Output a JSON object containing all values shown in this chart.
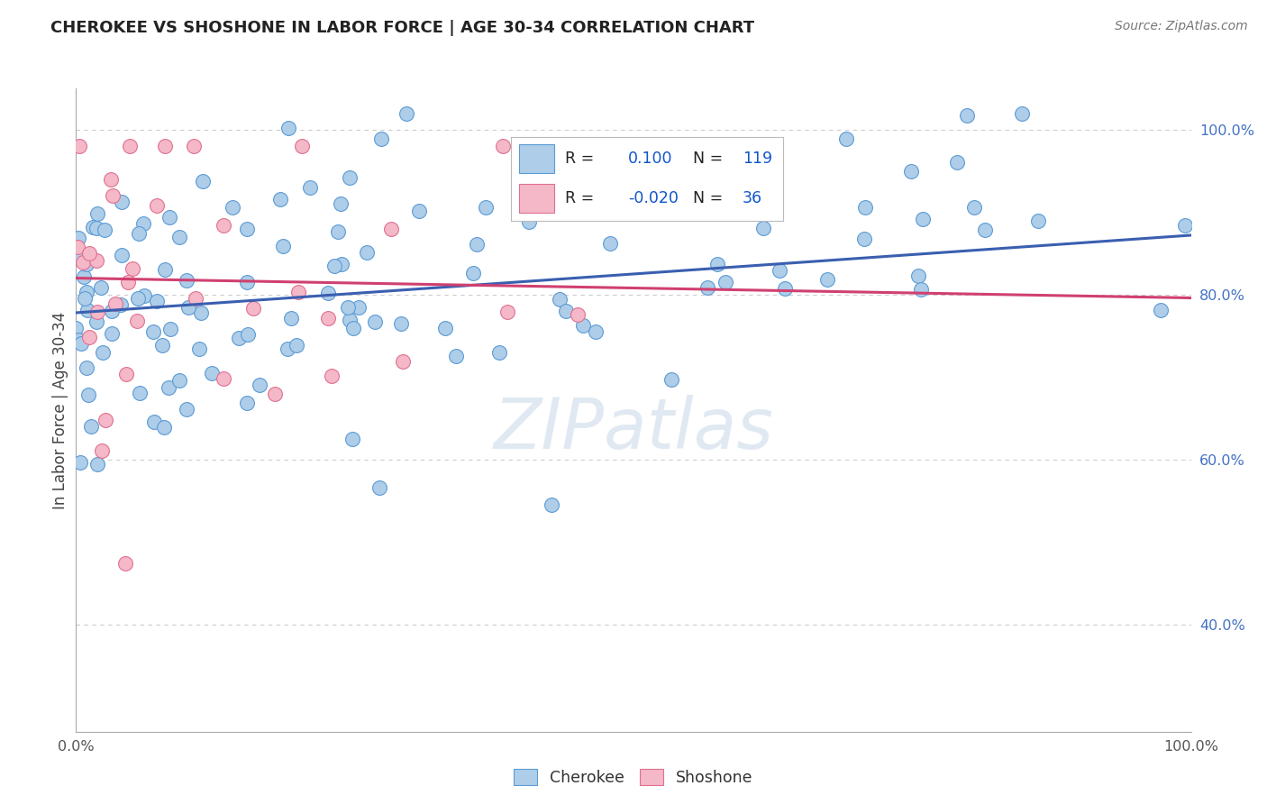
{
  "title": "CHEROKEE VS SHOSHONE IN LABOR FORCE | AGE 30-34 CORRELATION CHART",
  "source": "Source: ZipAtlas.com",
  "ylabel": "In Labor Force | Age 30-34",
  "xlim": [
    0.0,
    1.0
  ],
  "ylim": [
    0.27,
    1.05
  ],
  "ytick_positions": [
    0.4,
    0.6,
    0.8,
    1.0
  ],
  "ytick_labels": [
    "40.0%",
    "60.0%",
    "80.0%",
    "100.0%"
  ],
  "xtick_positions": [
    0.0,
    1.0
  ],
  "xtick_labels": [
    "0.0%",
    "100.0%"
  ],
  "cherokee_R": 0.1,
  "cherokee_N": 119,
  "shoshone_R": -0.02,
  "shoshone_N": 36,
  "cherokee_color": "#aecde8",
  "cherokee_edge": "#5b9bd5",
  "shoshone_color": "#f4b8c8",
  "shoshone_edge": "#e07090",
  "trendline_cherokee_color": "#3a5fb0",
  "trendline_shoshone_color": "#d04070",
  "watermark": "ZIPatlas",
  "background_color": "#ffffff",
  "grid_color": "#cccccc",
  "legend_R_color": "#1155cc",
  "legend_N_color": "#1155cc",
  "title_color": "#222222",
  "source_color": "#777777",
  "ylabel_color": "#444444",
  "tick_label_color": "#555555",
  "right_tick_color": "#4472c4"
}
